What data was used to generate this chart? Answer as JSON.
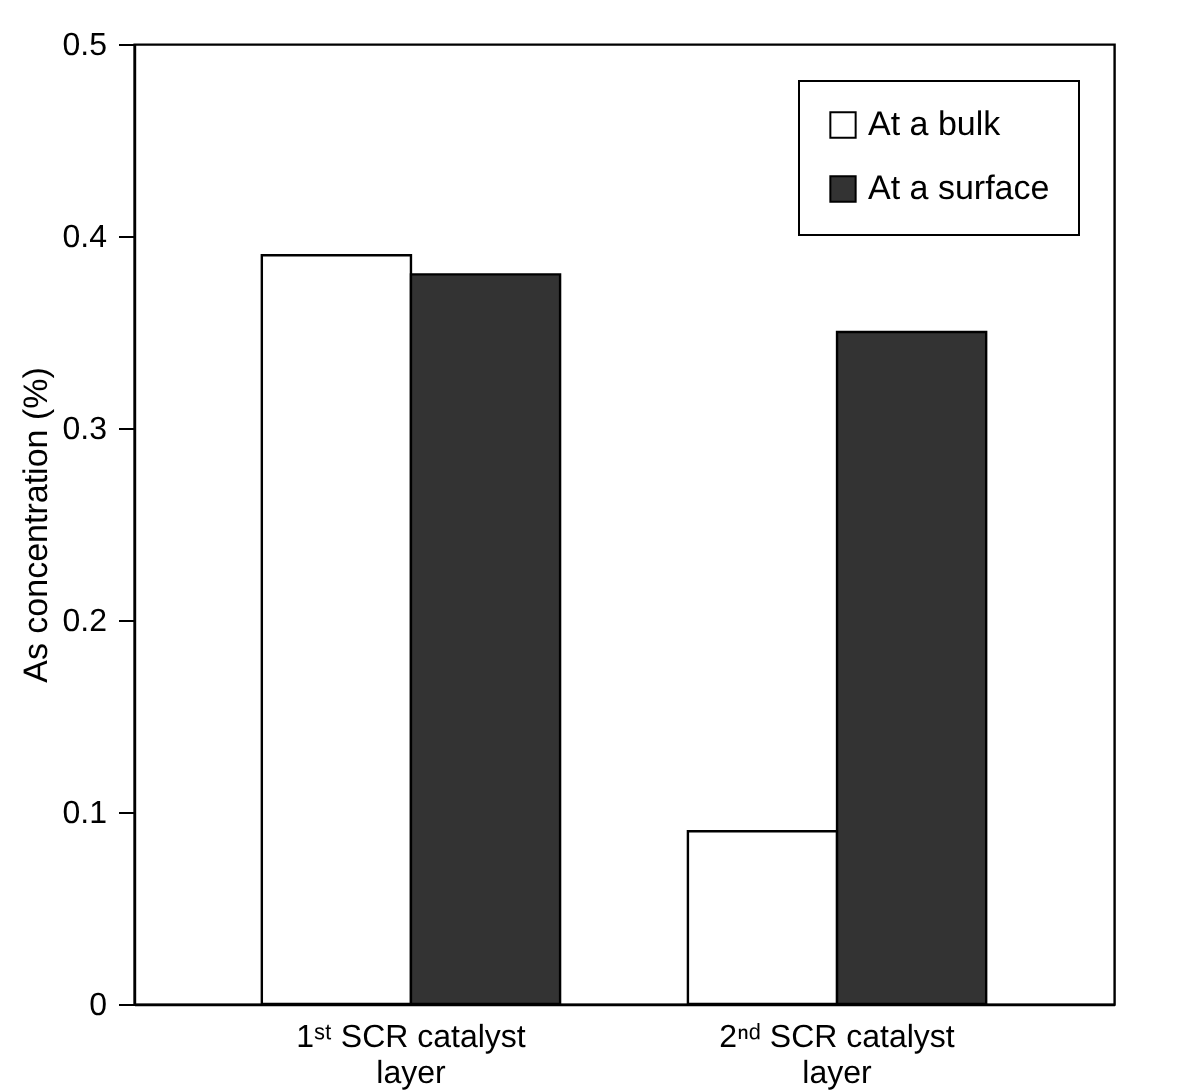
{
  "chart_data": {
    "type": "bar",
    "ylabel": "As concentration (%)",
    "categories": [
      "1ˢᵗ SCR catalyst layer",
      "2ⁿᵈ SCR catalyst layer"
    ],
    "series": [
      {
        "name": "At a bulk",
        "color": "#ffffff",
        "values": [
          0.39,
          0.09
        ]
      },
      {
        "name": "At a surface",
        "color": "#333333",
        "values": [
          0.38,
          0.35
        ]
      }
    ],
    "ylim": [
      0,
      0.5
    ],
    "yticks": [
      0,
      0.1,
      0.2,
      0.3,
      0.4,
      0.5
    ],
    "legend": "top right",
    "grid": false
  }
}
